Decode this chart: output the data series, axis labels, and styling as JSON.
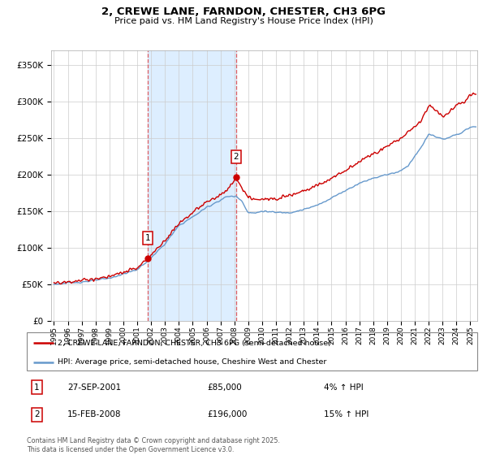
{
  "title_line1": "2, CREWE LANE, FARNDON, CHESTER, CH3 6PG",
  "title_line2": "Price paid vs. HM Land Registry's House Price Index (HPI)",
  "background_color": "#ffffff",
  "grid_color": "#cccccc",
  "sale1_x": 2001.75,
  "sale1_price": 85000,
  "sale1_label": "1",
  "sale1_date_str": "27-SEP-2001",
  "sale1_price_str": "£85,000",
  "sale1_pct_str": "4% ↑ HPI",
  "sale2_x": 2008.125,
  "sale2_price": 196000,
  "sale2_label": "2",
  "sale2_date_str": "15-FEB-2008",
  "sale2_price_str": "£196,000",
  "sale2_pct_str": "15% ↑ HPI",
  "hpi_color": "#6699cc",
  "price_color": "#cc0000",
  "shade_color": "#ddeeff",
  "yticks": [
    0,
    50000,
    100000,
    150000,
    200000,
    250000,
    300000,
    350000
  ],
  "ylim": [
    0,
    370000
  ],
  "xlim_start": 1994.8,
  "xlim_end": 2025.5,
  "legend_label1": "2, CREWE LANE, FARNDON, CHESTER, CH3 6PG (semi-detached house)",
  "legend_label2": "HPI: Average price, semi-detached house, Cheshire West and Chester",
  "footer": "Contains HM Land Registry data © Crown copyright and database right 2025.\nThis data is licensed under the Open Government Licence v3.0.",
  "xticks": [
    1995,
    1996,
    1997,
    1998,
    1999,
    2000,
    2001,
    2002,
    2003,
    2004,
    2005,
    2006,
    2007,
    2008,
    2009,
    2010,
    2011,
    2012,
    2013,
    2014,
    2015,
    2016,
    2017,
    2018,
    2019,
    2020,
    2021,
    2022,
    2023,
    2024,
    2025
  ]
}
